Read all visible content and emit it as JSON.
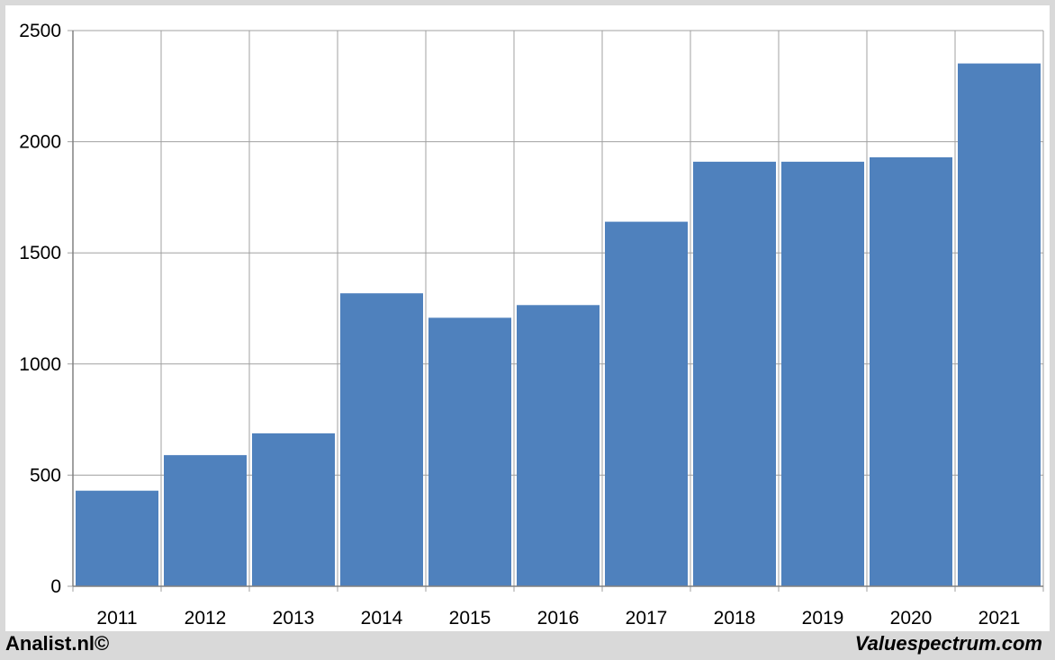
{
  "footer": {
    "left_text": "Analist.nl©",
    "right_text": "Valuespectrum.com"
  },
  "colors": {
    "bar": "#4f81bd",
    "grid": "#a0a0a0",
    "axis": "#808080",
    "background": "#d9d9d9",
    "plot_background": "#ffffff"
  },
  "chart_data": {
    "type": "bar",
    "categories": [
      "2011",
      "2012",
      "2013",
      "2014",
      "2015",
      "2016",
      "2017",
      "2018",
      "2019",
      "2020",
      "2021"
    ],
    "values": [
      430,
      590,
      688,
      1318,
      1208,
      1265,
      1640,
      1910,
      1910,
      1930,
      2352
    ],
    "yticks": [
      0,
      500,
      1000,
      1500,
      2000,
      2500
    ],
    "ylim": [
      0,
      2500
    ],
    "title": "",
    "xlabel": "",
    "ylabel": "",
    "grid": true,
    "legend": "none"
  }
}
